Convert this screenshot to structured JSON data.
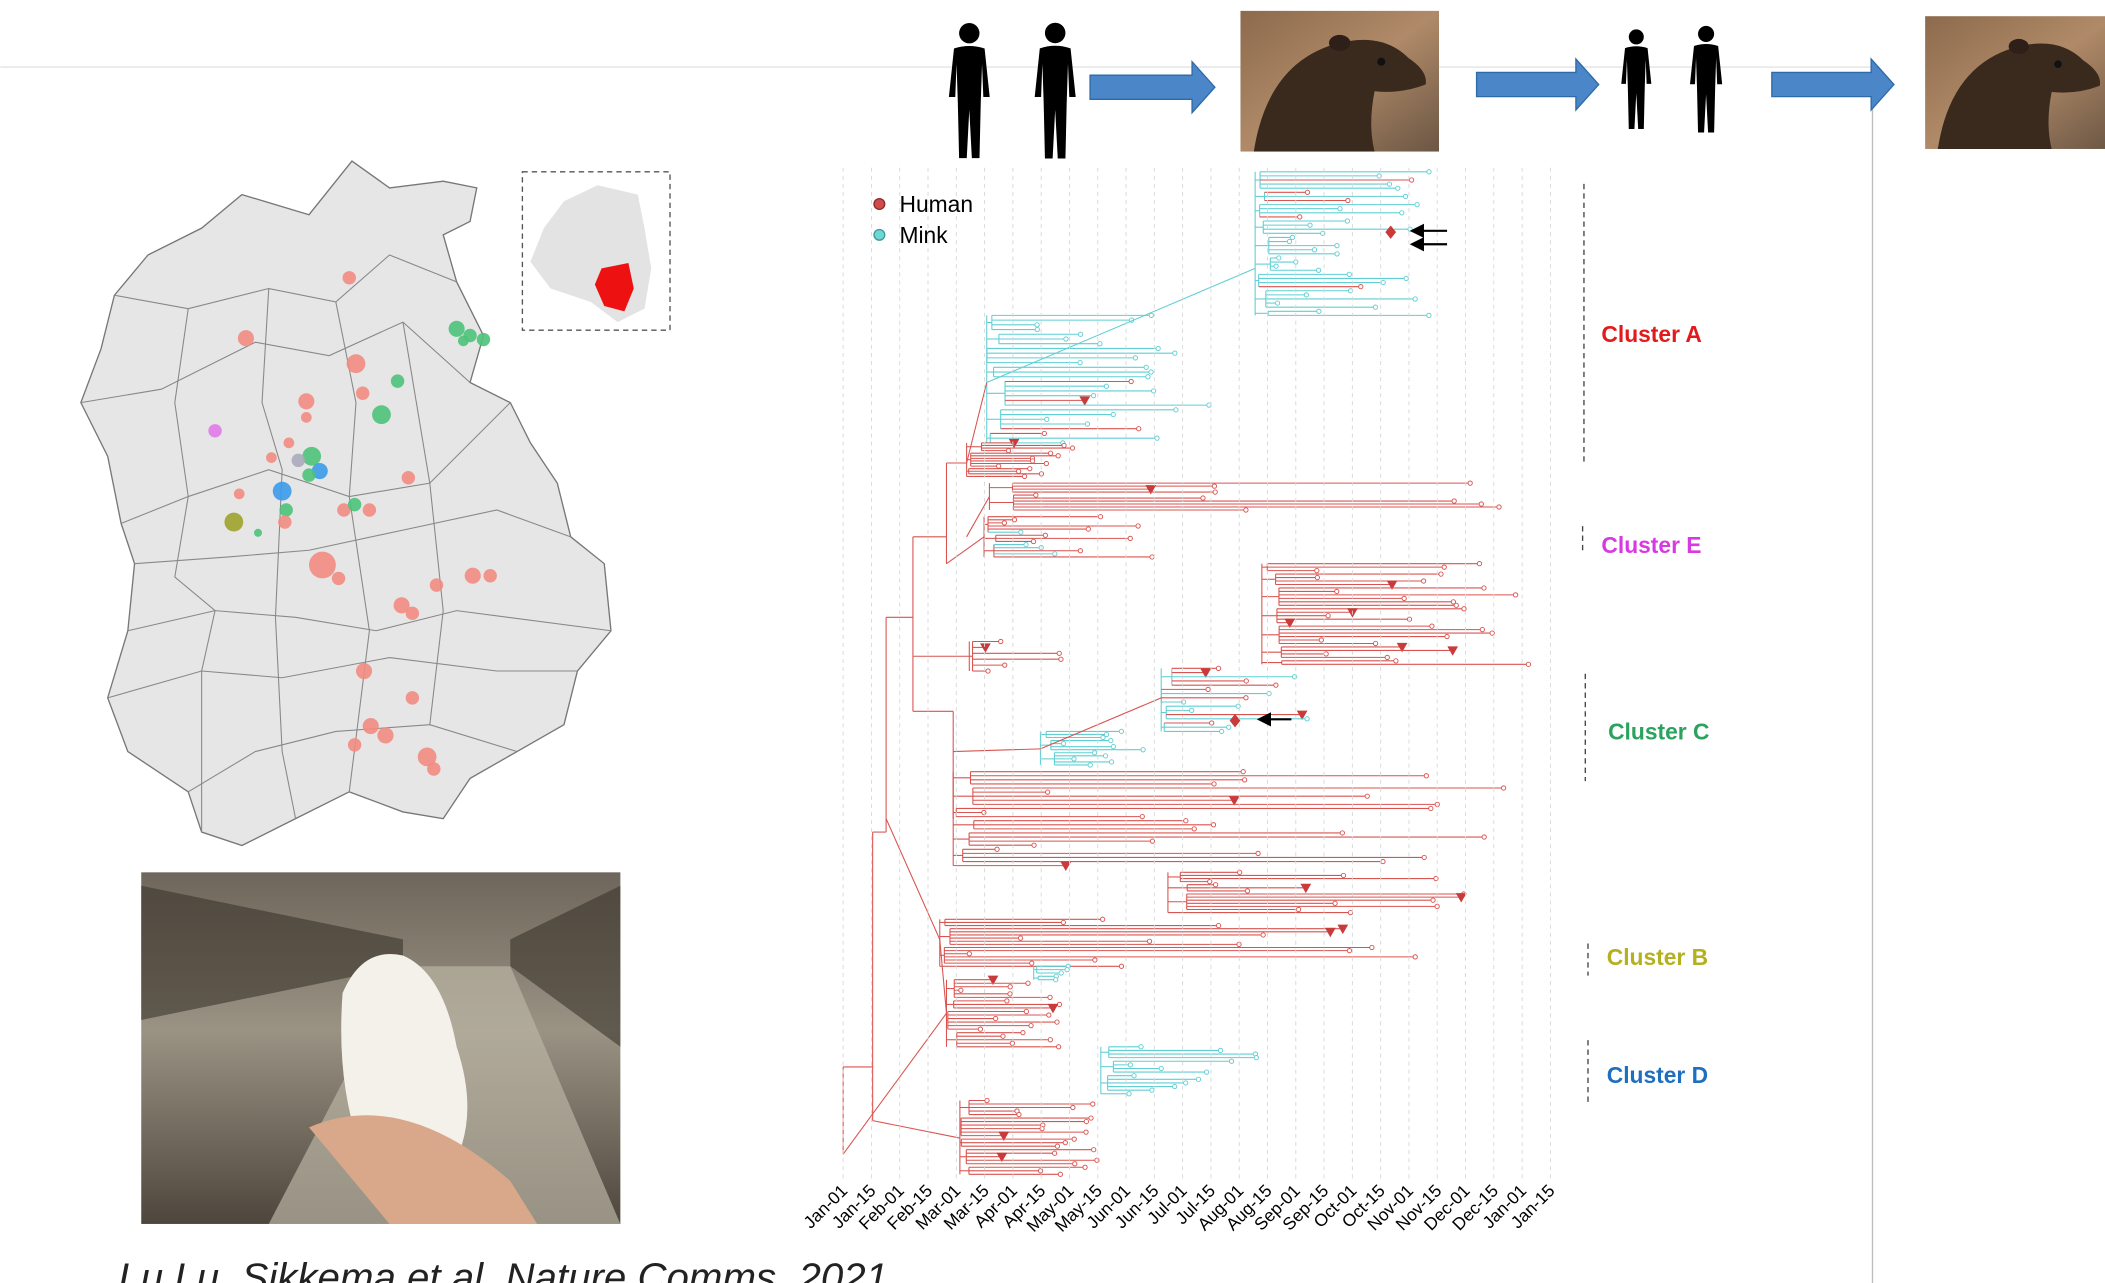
{
  "legend": [
    "Human",
    "Mink"
  ],
  "clusters": [
    "Cluster A",
    "Cluster E",
    "Cluster C",
    "Cluster B",
    "Cluster D"
  ],
  "x_axis": {
    "ticks": [
      "Jan-01",
      "Jan-15",
      "Feb-01",
      "Feb-15",
      "Mar-01",
      "Mar-15",
      "Apr-01",
      "Apr-15",
      "May-01",
      "May-15",
      "Jun-01",
      "Jun-15",
      "Jul-01",
      "Jul-15",
      "Aug-01",
      "Aug-15",
      "Sep-01",
      "Sep-15",
      "Oct-01",
      "Oct-15",
      "Nov-01",
      "Nov-15",
      "Dec-01",
      "Dec-15",
      "Jan-01",
      "Jan-15"
    ]
  },
  "citation": "Lu Lu, Sikkema et al. Nature Comms, 2021"
}
